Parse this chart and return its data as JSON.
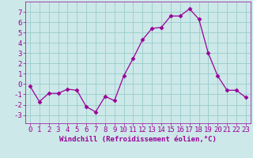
{
  "x": [
    0,
    1,
    2,
    3,
    4,
    5,
    6,
    7,
    8,
    9,
    10,
    11,
    12,
    13,
    14,
    15,
    16,
    17,
    18,
    19,
    20,
    21,
    22,
    23
  ],
  "y": [
    -0.2,
    -1.7,
    -0.9,
    -0.9,
    -0.5,
    -0.6,
    -2.2,
    -2.7,
    -1.2,
    -1.6,
    0.8,
    2.5,
    4.3,
    5.4,
    5.5,
    6.6,
    6.6,
    7.3,
    6.3,
    3.0,
    0.8,
    -0.6,
    -0.6,
    -1.3
  ],
  "line_color": "#990099",
  "marker": "D",
  "marker_size": 2.5,
  "bg_color": "#cce8e8",
  "grid_color": "#99cccc",
  "xlabel": "Windchill (Refroidissement éolien,°C)",
  "axis_color": "#990099",
  "ylim": [
    -3.8,
    8.0
  ],
  "yticks": [
    -3,
    -2,
    -1,
    0,
    1,
    2,
    3,
    4,
    5,
    6,
    7
  ],
  "xticks": [
    0,
    1,
    2,
    3,
    4,
    5,
    6,
    7,
    8,
    9,
    10,
    11,
    12,
    13,
    14,
    15,
    16,
    17,
    18,
    19,
    20,
    21,
    22,
    23
  ],
  "font_size": 6.5
}
